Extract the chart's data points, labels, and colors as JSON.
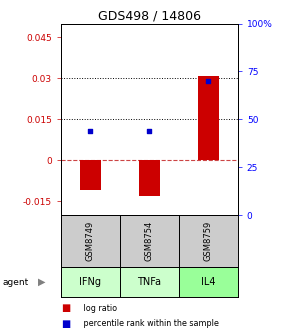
{
  "title": "GDS498 / 14806",
  "samples": [
    "GSM8749",
    "GSM8754",
    "GSM8759"
  ],
  "agents": [
    "IFNg",
    "TNFa",
    "IL4"
  ],
  "log_ratios": [
    -0.011,
    -0.013,
    0.031
  ],
  "percentile_ranks": [
    0.44,
    0.44,
    0.7
  ],
  "bar_color": "#cc0000",
  "dot_color": "#0000cc",
  "ylim_left": [
    -0.02,
    0.05
  ],
  "ylim_right": [
    0,
    1.0
  ],
  "yticks_left": [
    -0.015,
    0,
    0.015,
    0.03,
    0.045
  ],
  "yticks_right": [
    0,
    0.25,
    0.5,
    0.75,
    1.0
  ],
  "ytick_labels_left": [
    "-0.015",
    "0",
    "0.015",
    "0.03",
    "0.045"
  ],
  "ytick_labels_right": [
    "0",
    "25",
    "50",
    "75",
    "100%"
  ],
  "hlines_dotted": [
    0.015,
    0.03
  ],
  "hline_dashed": 0,
  "agent_colors": [
    "#ccffcc",
    "#ccffcc",
    "#99ff99"
  ],
  "sample_bg_color": "#cccccc",
  "legend_items": [
    {
      "color": "#cc0000",
      "label": " log ratio"
    },
    {
      "color": "#0000cc",
      "label": " percentile rank within the sample"
    }
  ],
  "bar_width": 0.35
}
